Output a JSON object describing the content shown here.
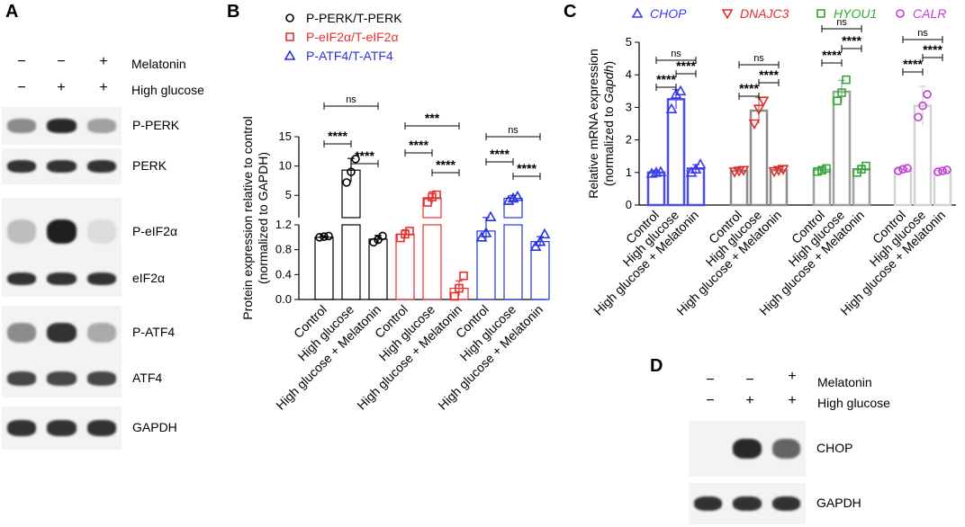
{
  "panels": {
    "a": "A",
    "b": "B",
    "c": "C",
    "d": "D"
  },
  "treatments": {
    "melatonin": "Melatonin",
    "high_glucose": "High glucose",
    "minus": "−",
    "plus": "+",
    "melatonin_signs": [
      "−",
      "−",
      "+"
    ],
    "glucose_signs": [
      "−",
      "+",
      "+"
    ]
  },
  "blot_a": {
    "labels": [
      "P-PERK",
      "PERK",
      "P-eIF2α",
      "eIF2α",
      "P-ATF4",
      "ATF4",
      "GAPDH"
    ],
    "band_intensity": [
      [
        0.45,
        0.95,
        0.35
      ],
      [
        0.9,
        0.9,
        0.9
      ],
      [
        0.2,
        1.0,
        0.05
      ],
      [
        0.9,
        0.9,
        0.9
      ],
      [
        0.45,
        0.9,
        0.3
      ],
      [
        0.8,
        0.8,
        0.8
      ],
      [
        0.9,
        0.9,
        0.9
      ]
    ]
  },
  "blot_d": {
    "labels": [
      "CHOP",
      "GAPDH"
    ],
    "band_intensity": [
      [
        0.0,
        0.95,
        0.65
      ],
      [
        0.9,
        0.9,
        0.9
      ]
    ]
  },
  "group_labels": [
    "Control",
    "High glucose",
    "High glucose + Melatonin"
  ],
  "chart_data": [
    {
      "type": "bar",
      "panel": "B",
      "ylabel": "Protein expression relative to control (normalized to GAPDH)",
      "ylabel_lines": [
        "Protein expression relative to control",
        "(normalized to GAPDH)"
      ],
      "axis_break": {
        "lower": [
          0,
          1.2
        ],
        "upper": [
          1.2,
          15
        ]
      },
      "yticks_lower": [
        "0.0",
        "0.4",
        "0.8",
        "1.2"
      ],
      "yticks_upper": [
        "5",
        "10",
        "15"
      ],
      "categories": [
        "Control",
        "High glucose",
        "High glucose + Melatonin"
      ],
      "series": [
        {
          "name": "P-PERK/T-PERK",
          "color": "#000000",
          "marker": "circle",
          "values": [
            1.0,
            9.3,
            0.97
          ],
          "errors": [
            0.02,
            2.0,
            0.06
          ],
          "points": [
            [
              1.0,
              1.01,
              1.02
            ],
            [
              7.2,
              9.0,
              11.2
            ],
            [
              0.92,
              0.96,
              1.02
            ]
          ]
        },
        {
          "name": "P-eIF2α/T-eIF2α",
          "color": "#e8302e",
          "marker": "square",
          "values": [
            1.05,
            4.6,
            0.18
          ],
          "errors": [
            0.07,
            1.0,
            0.12
          ],
          "points": [
            [
              0.99,
              1.05,
              1.1
            ],
            [
              3.8,
              4.7,
              5.1
            ],
            [
              0.05,
              0.18,
              0.38
            ]
          ]
        },
        {
          "name": "P-ATF4/T-ATF4",
          "color": "#2433e0",
          "marker": "triangle",
          "values": [
            1.1,
            4.5,
            0.93
          ],
          "errors": [
            0.12,
            0.5,
            0.08
          ],
          "points": [
            [
              1.0,
              1.07,
              1.33
            ],
            [
              4.1,
              4.5,
              4.8
            ],
            [
              0.85,
              0.93,
              1.05
            ]
          ]
        }
      ],
      "significance": [
        [
          "****",
          "****",
          "ns"
        ],
        [
          "****",
          "****",
          "***"
        ],
        [
          "****",
          "****",
          "ns"
        ]
      ]
    },
    {
      "type": "bar",
      "panel": "C",
      "ylabel": "Relative mRNA expression (normalized to Gapdh)",
      "ylabel_line1": "Relative mRNA expression",
      "ylabel_line2a": "(normalized to ",
      "ylabel_line2b": "Gapdh",
      "ylabel_line2c": ")",
      "ylim": [
        0,
        5
      ],
      "yticks": [
        "0",
        "1",
        "2",
        "3",
        "4",
        "5"
      ],
      "categories": [
        "Control",
        "High glucose",
        "High glucose + Melatonin"
      ],
      "series": [
        {
          "name": "CHOP",
          "color": "#3a3aef",
          "bar_color": "#4b4bf0",
          "marker": "triangle",
          "values": [
            1.0,
            3.25,
            1.12
          ],
          "errors": [
            0.06,
            0.3,
            0.12
          ],
          "points": [
            [
              0.97,
              1.0,
              1.02
            ],
            [
              2.95,
              3.4,
              3.5
            ],
            [
              1.0,
              1.1,
              1.25
            ]
          ]
        },
        {
          "name": "DNAJC3",
          "color": "#e32b2b",
          "bar_color": "#8c8c8c",
          "marker": "triangle-down",
          "values": [
            1.05,
            2.9,
            1.07
          ],
          "errors": [
            0.04,
            0.4,
            0.05
          ],
          "points": [
            [
              1.02,
              1.05,
              1.07
            ],
            [
              2.5,
              2.95,
              3.2
            ],
            [
              1.03,
              1.07,
              1.1
            ]
          ]
        },
        {
          "name": "HYOU1",
          "color": "#2eab36",
          "bar_color": "#a0a0a0",
          "marker": "square",
          "values": [
            1.08,
            3.48,
            1.1
          ],
          "errors": [
            0.06,
            0.35,
            0.12
          ],
          "points": [
            [
              1.03,
              1.07,
              1.12
            ],
            [
              3.2,
              3.45,
              3.85
            ],
            [
              1.0,
              1.1,
              1.2
            ]
          ]
        },
        {
          "name": "CALR",
          "color": "#c43bd6",
          "bar_color": "#d2d2d2",
          "marker": "circle",
          "values": [
            1.1,
            3.05,
            1.05
          ],
          "errors": [
            0.05,
            0.6,
            0.04
          ],
          "points": [
            [
              1.05,
              1.1,
              1.13
            ],
            [
              2.7,
              3.05,
              3.4
            ],
            [
              1.02,
              1.05,
              1.08
            ]
          ]
        }
      ],
      "significance": [
        [
          "****",
          "****",
          "ns"
        ],
        [
          "****",
          "****",
          "ns"
        ],
        [
          "****",
          "****",
          "ns"
        ],
        [
          "****",
          "****",
          "ns"
        ]
      ]
    }
  ]
}
